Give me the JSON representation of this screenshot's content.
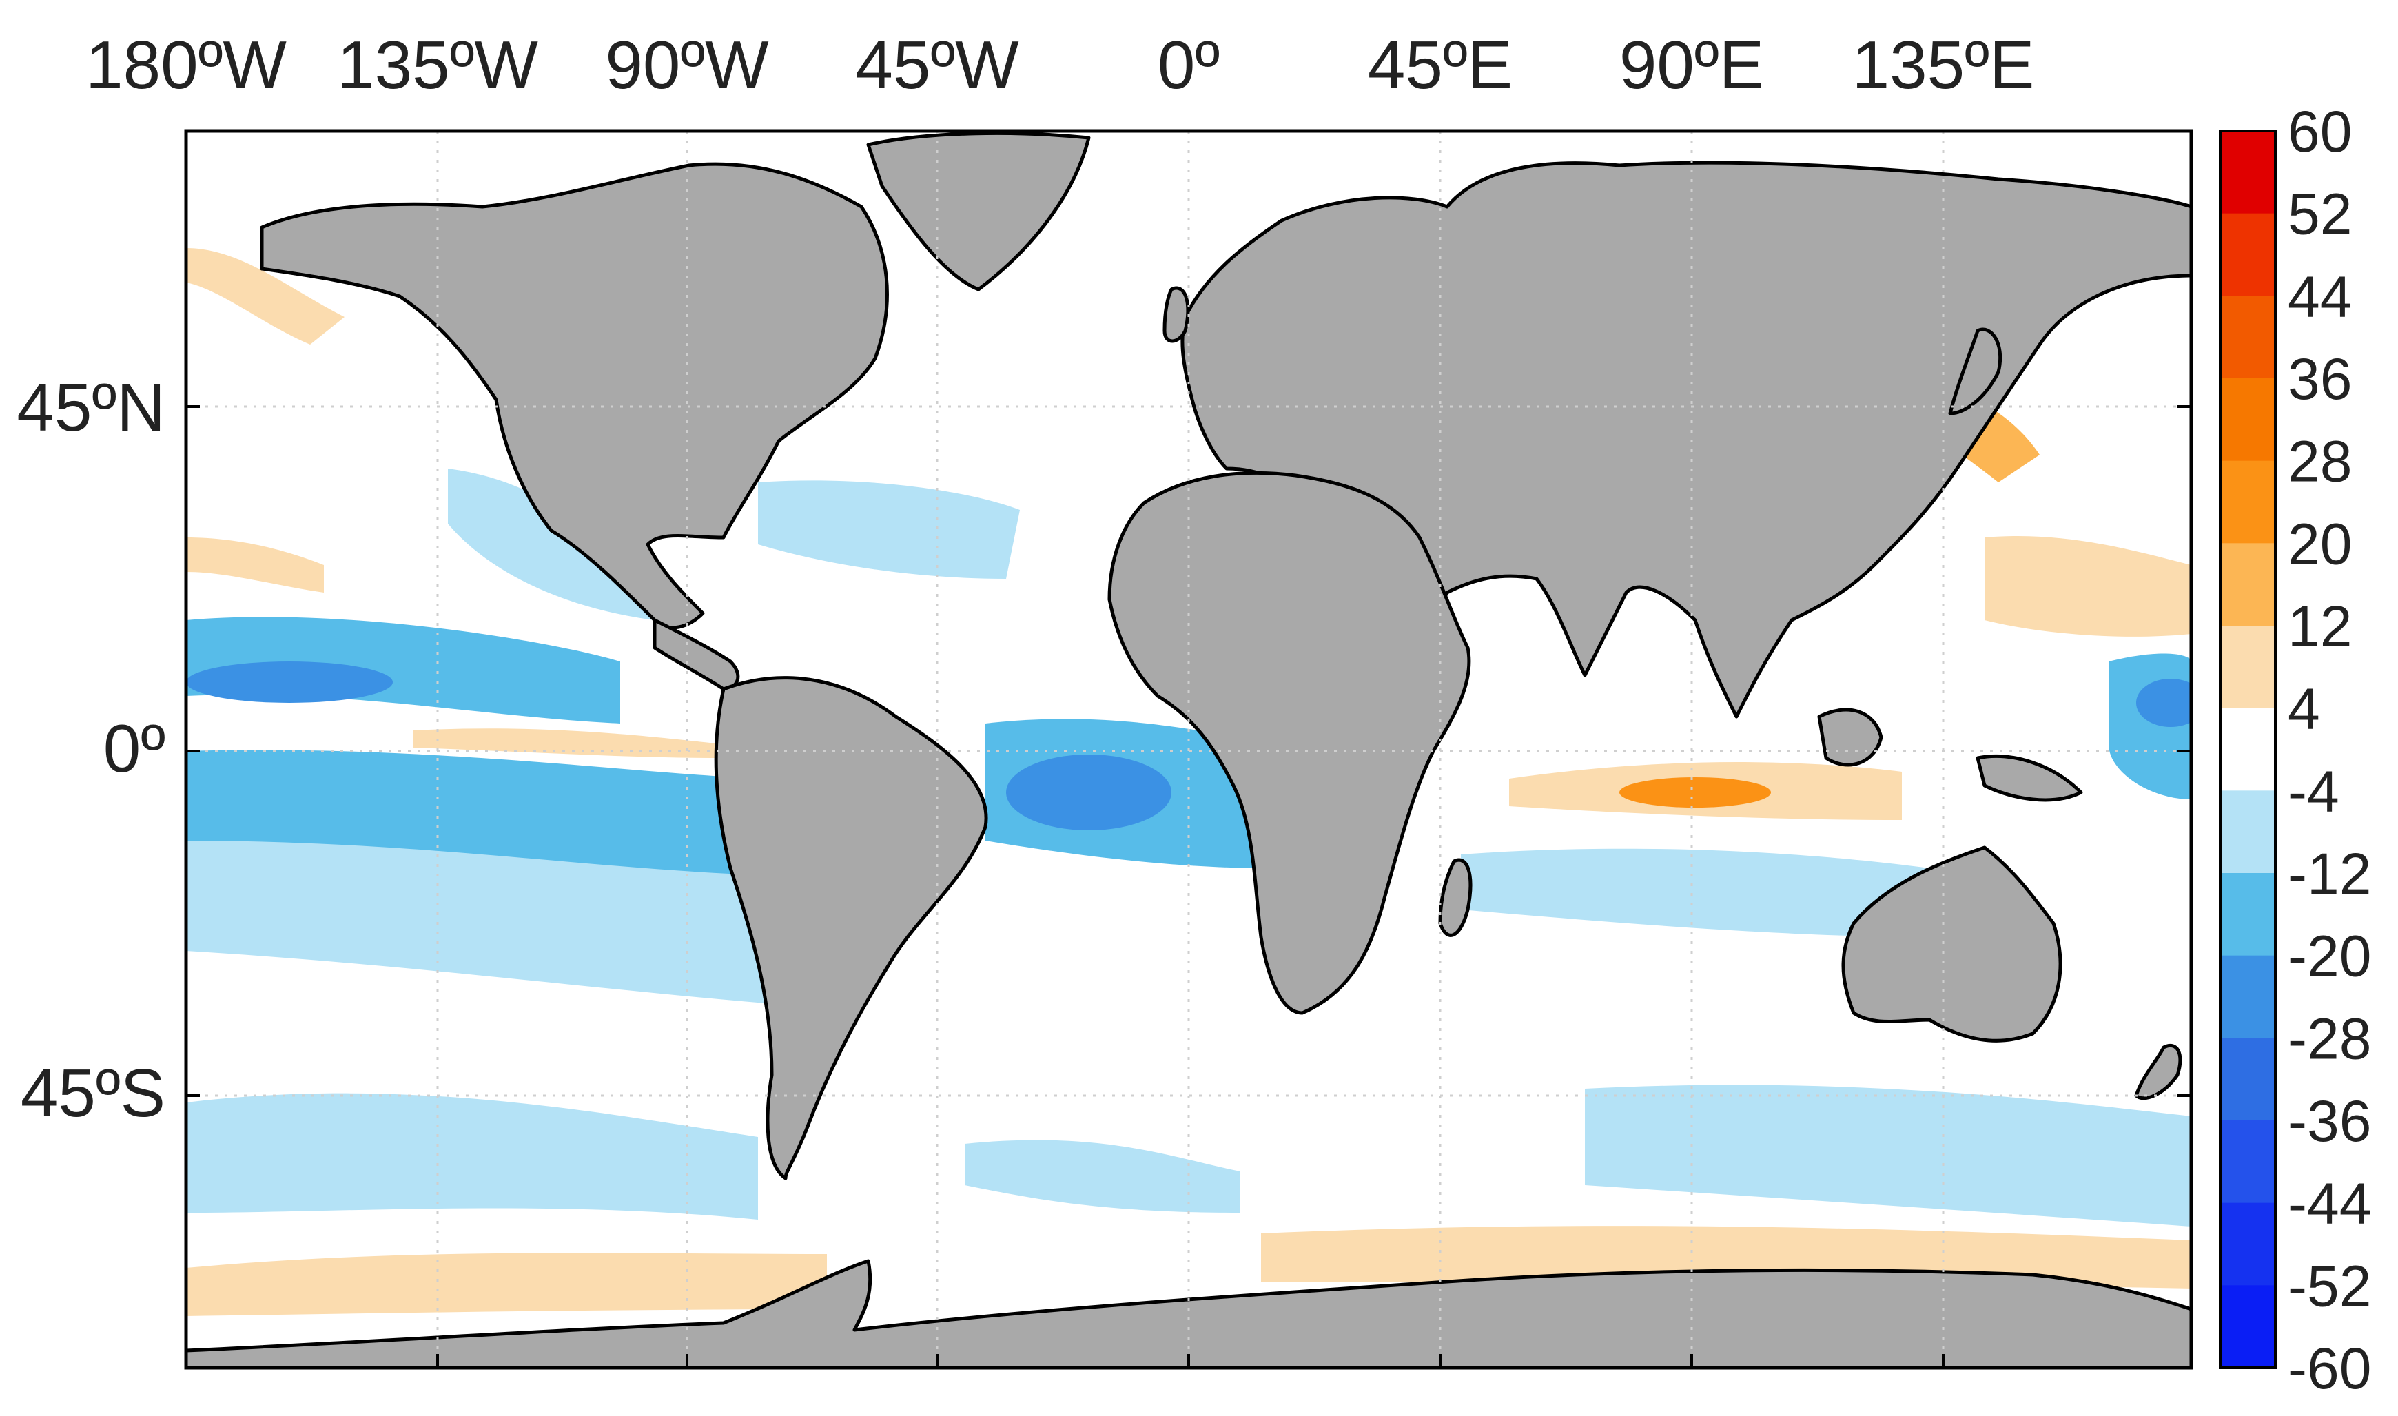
{
  "map": {
    "lon_labels": [
      "180ºW",
      "135ºW",
      "90ºW",
      "45ºW",
      "0º",
      "45ºE",
      "90ºE",
      "135ºE"
    ],
    "lat_labels": [
      "45ºN",
      "0º",
      "45ºS"
    ],
    "extent": {
      "lon": [
        -180,
        180
      ],
      "lat": [
        -90,
        90
      ]
    },
    "gridlines": true,
    "land_color": "#a9a9a9",
    "coastline_color": "#000000"
  },
  "colorbar": {
    "ticks": [
      "60",
      "52",
      "44",
      "36",
      "28",
      "20",
      "12",
      "4",
      "-4",
      "-12",
      "-20",
      "-28",
      "-36",
      "-44",
      "-52",
      "-60"
    ],
    "colors_top_to_bottom": [
      "#e00000",
      "#ee3300",
      "#f25a00",
      "#f67800",
      "#fb9215",
      "#fcb654",
      "#fbdcaf",
      "#ffffff",
      "#b4e2f6",
      "#57bce9",
      "#3b91e4",
      "#2e6ee3",
      "#2452eb",
      "#1532f0",
      "#0a1ef5"
    ],
    "placement": "right"
  },
  "chart_data": {
    "type": "heatmap",
    "variable_range": [
      -60,
      60
    ],
    "levels": [
      -60,
      -52,
      -44,
      -36,
      -28,
      -20,
      -12,
      -4,
      4,
      12,
      20,
      28,
      36,
      44,
      52,
      60
    ],
    "x_ticks": [
      "180ºW",
      "135ºW",
      "90ºW",
      "45ºW",
      "0º",
      "45ºE",
      "90ºE",
      "135ºE"
    ],
    "y_ticks": [
      "45ºN",
      "0º",
      "45ºS"
    ]
  }
}
